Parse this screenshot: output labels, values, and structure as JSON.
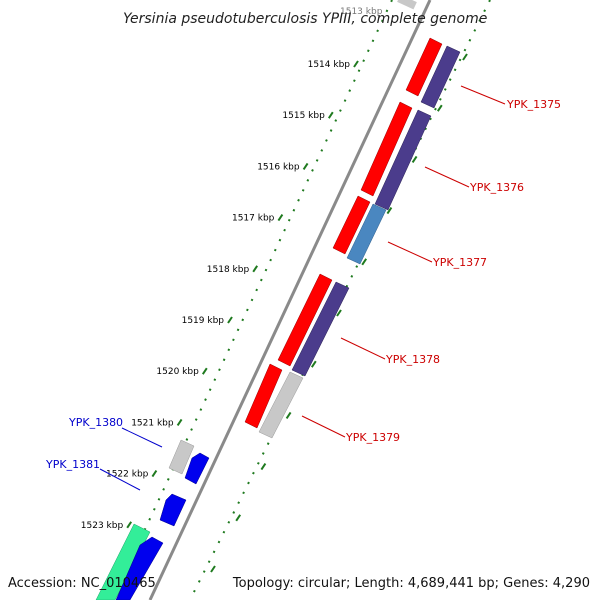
{
  "header": {
    "title": "Yersinia pseudotuberculosis YPIII, complete genome",
    "top_partial_tick": "1513 kbp"
  },
  "footer": {
    "accession": "Accession: NC_010465",
    "summary": "Topology: circular; Length: 4,689,441 bp; Genes: 4,290"
  },
  "colors": {
    "backbone": "#8a8a8a",
    "tick": "#1f7a1f",
    "cds": "#ff0000",
    "orf": "#4b3c8c",
    "blue_feature": "#0000ee",
    "gray_feature": "#c8c8c8",
    "steel_feature": "#4a87c0",
    "teal_feature": "#33ee99",
    "label_forward": "#cc0000",
    "label_reverse": "#0000cc"
  },
  "ticks": [
    "1514 kbp",
    "1515 kbp",
    "1516 kbp",
    "1517 kbp",
    "1518 kbp",
    "1519 kbp",
    "1520 kbp",
    "1521 kbp",
    "1522 kbp",
    "1523 kbp"
  ],
  "genes_forward": [
    {
      "label": "YPK_1375"
    },
    {
      "label": "YPK_1376"
    },
    {
      "label": "YPK_1377"
    },
    {
      "label": "YPK_1378"
    },
    {
      "label": "YPK_1379"
    }
  ],
  "genes_reverse": [
    {
      "label": "YPK_1380"
    },
    {
      "label": "YPK_1381"
    }
  ]
}
